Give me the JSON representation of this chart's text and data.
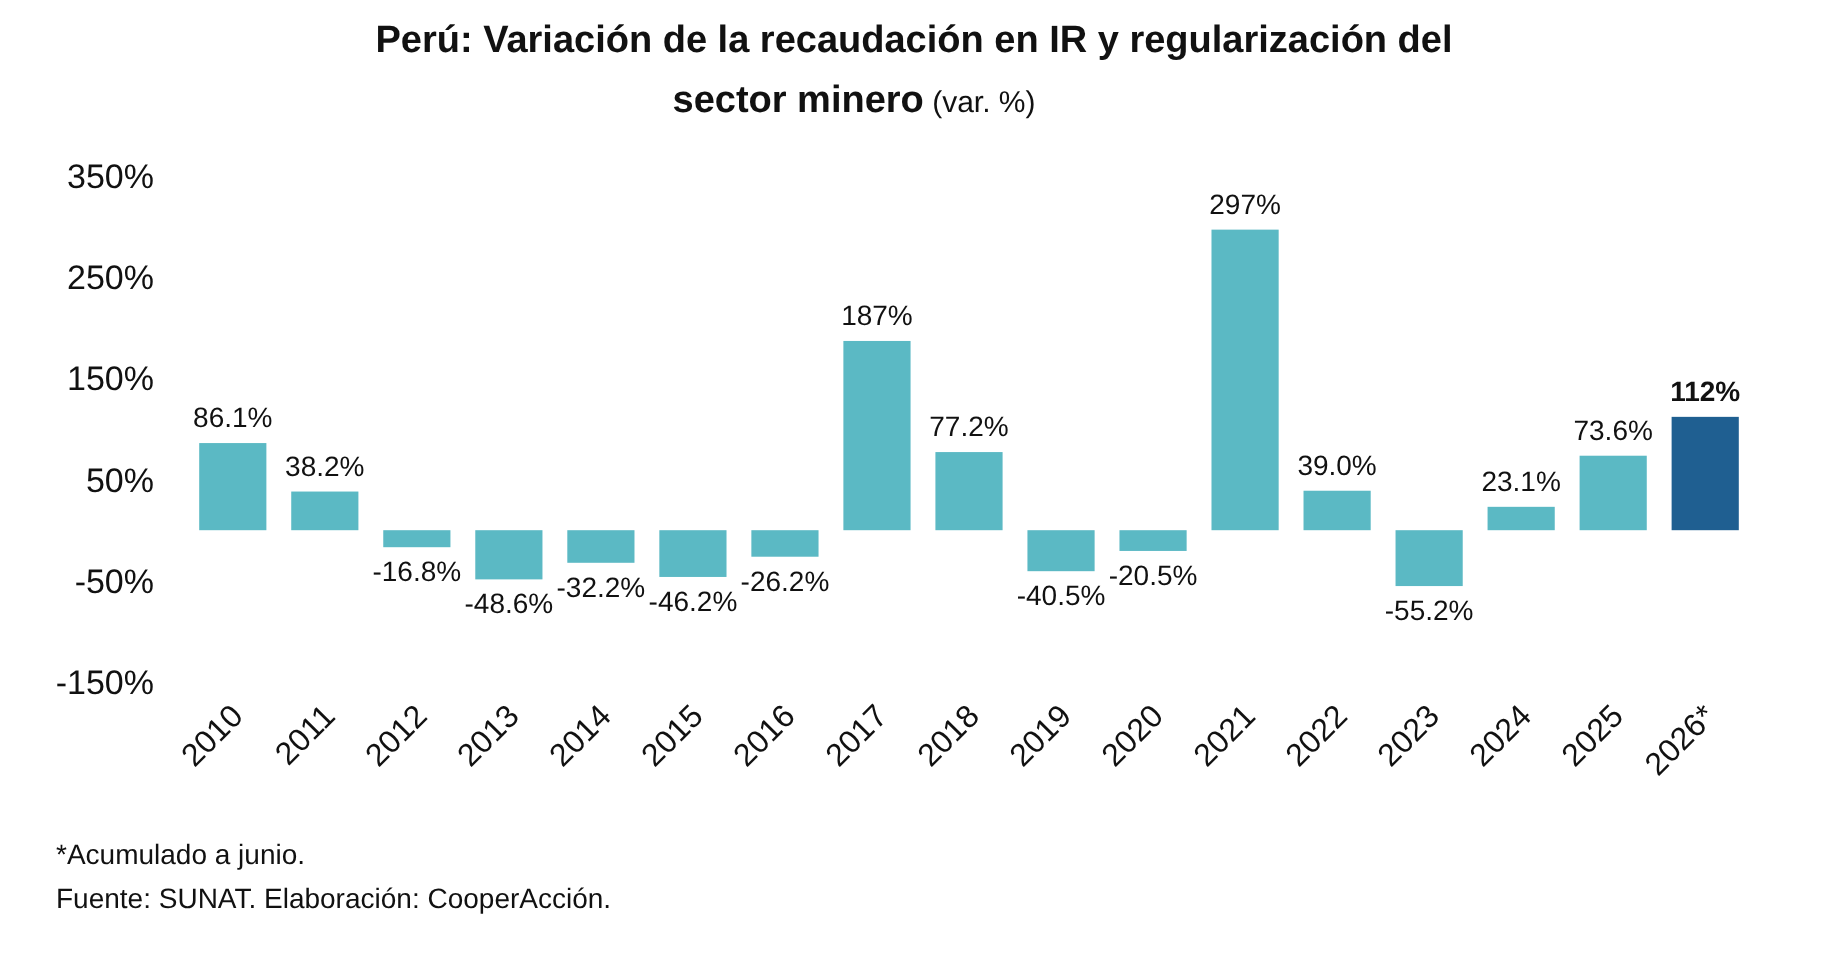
{
  "chart_data": {
    "type": "bar",
    "title": "Perú: Variación de la recaudación en IR y regularización del sector minero",
    "subtitle": "(var. %)",
    "categories": [
      "2010",
      "2011",
      "2012",
      "2013",
      "2014",
      "2015",
      "2016",
      "2017",
      "2018",
      "2019",
      "2020",
      "2021",
      "2022",
      "2023",
      "2024",
      "2025",
      "2026*"
    ],
    "values": [
      86.1,
      38.2,
      -16.8,
      -48.6,
      -32.2,
      -46.2,
      -26.2,
      187,
      77.2,
      -40.5,
      -20.5,
      297,
      39.0,
      -55.2,
      23.1,
      73.6,
      112
    ],
    "value_labels": [
      "86.1%",
      "38.2%",
      "-16.8%",
      "-48.6%",
      "-32.2%",
      "-46.2%",
      "-26.2%",
      "187%",
      "77.2%",
      "-40.5%",
      "-20.5%",
      "297%",
      "39.0%",
      "-55.2%",
      "23.1%",
      "73.6%",
      "112%"
    ],
    "colors": [
      "#5bb9c4",
      "#5bb9c4",
      "#5bb9c4",
      "#5bb9c4",
      "#5bb9c4",
      "#5bb9c4",
      "#5bb9c4",
      "#5bb9c4",
      "#5bb9c4",
      "#5bb9c4",
      "#5bb9c4",
      "#5bb9c4",
      "#5bb9c4",
      "#5bb9c4",
      "#5bb9c4",
      "#5bb9c4",
      "#1f5f91"
    ],
    "ylim": [
      -150,
      350
    ],
    "yticks": [
      {
        "value": -150,
        "label": "-150%"
      },
      {
        "value": -50,
        "label": "-50%"
      },
      {
        "value": 50,
        "label": "50%"
      },
      {
        "value": 150,
        "label": "150%"
      },
      {
        "value": 250,
        "label": "250%"
      },
      {
        "value": 350,
        "label": "350%"
      }
    ],
    "grid": false,
    "annotations": [
      "*Acumulado a junio.",
      "Fuente: SUNAT. Elaboración: CooperAcción."
    ]
  }
}
